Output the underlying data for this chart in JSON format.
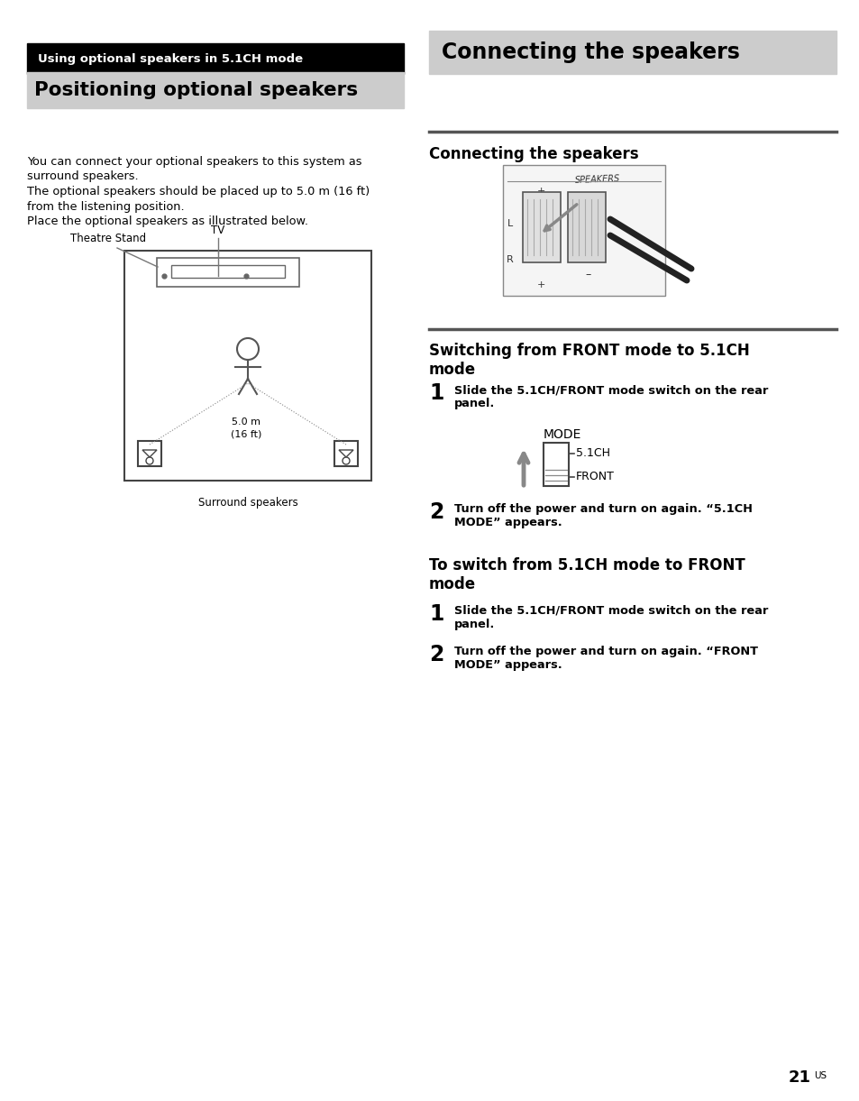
{
  "page_bg": "#ffffff",
  "section_tag_text": "Using optional speakers in 5.1CH mode",
  "section_tag_bg": "#000000",
  "section_tag_color": "#ffffff",
  "left_title": "Positioning optional speakers",
  "left_title_bg": "#cccccc",
  "body_text": "You can connect your optional speakers to this system as\nsurround speakers.\nThe optional speakers should be placed up to 5.0 m (16 ft)\nfrom the listening position.\nPlace the optional speakers as illustrated below.",
  "right_title": "Connecting the speakers",
  "right_title_bg": "#cccccc",
  "right_subtitle": "Connecting the speakers",
  "switch_section_title": "Switching from FRONT mode to 5.1CH\nmode",
  "step1_text": "Slide the 5.1CH/FRONT mode switch on the rear\npanel.",
  "step2_text": "Turn off the power and turn on again. “5.1CH\nMODE” appears.",
  "sub_section_title": "To switch from 5.1CH mode to FRONT\nmode",
  "sub_step1_text": "Slide the 5.1CH/FRONT mode switch on the rear\npanel.",
  "sub_step2_text": "Turn off the power and turn on again. “FRONT\nMODE” appears.",
  "page_number": "21",
  "page_number_suffix": "US"
}
